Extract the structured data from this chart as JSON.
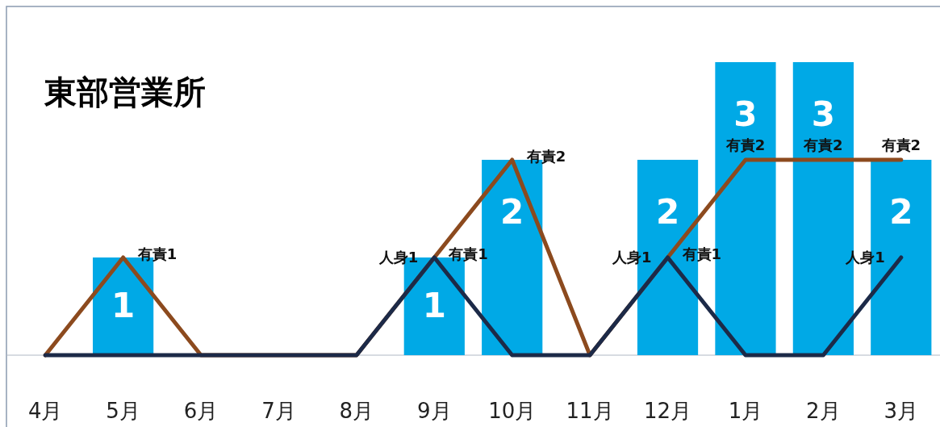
{
  "chart_data": {
    "type": "bar",
    "title": "東部営業所",
    "categories": [
      "4月",
      "5月",
      "6月",
      "7月",
      "8月",
      "9月",
      "10月",
      "11月",
      "12月",
      "1月",
      "2月",
      "3月"
    ],
    "series": [
      {
        "color": "#00a9e6",
        "values": [
          0,
          1,
          0,
          0,
          0,
          1,
          2,
          0,
          2,
          3,
          3,
          2
        ],
        "value_labels": [
          null,
          "1",
          null,
          null,
          null,
          "1",
          "2",
          null,
          "2",
          "3",
          "3",
          "2"
        ]
      },
      {
        "type": "line",
        "color": "#8c4a1e",
        "values": [
          0,
          1,
          0,
          0,
          0,
          1,
          2,
          0,
          1,
          2,
          2,
          2
        ],
        "value_labels": [
          null,
          "有責1",
          null,
          null,
          null,
          "有責1",
          "有責2",
          null,
          "有責1",
          "有責2",
          "有責2",
          "有責2"
        ]
      },
      {
        "type": "line",
        "color": "#1c2a48",
        "values": [
          0,
          0,
          0,
          0,
          0,
          1,
          0,
          0,
          1,
          0,
          0,
          1
        ],
        "value_labels": [
          null,
          null,
          null,
          null,
          null,
          "人身1",
          null,
          null,
          "人身1",
          null,
          null,
          "人身1"
        ]
      }
    ]
  }
}
